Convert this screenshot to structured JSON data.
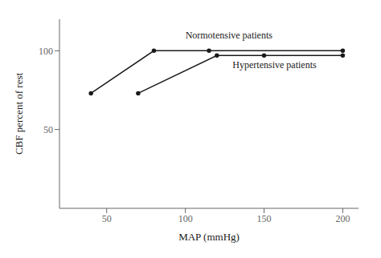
{
  "chart_data": {
    "type": "line",
    "xlabel": "MAP (mmHg)",
    "ylabel": "CBF percent of rest",
    "series": [
      {
        "color": "#1a1a1a",
        "marker": "point",
        "x": [
          40,
          80,
          115,
          200
        ],
        "values": [
          73,
          100,
          100,
          100
        ]
      },
      {
        "color": "#1a1a1a",
        "marker": "point",
        "x": [
          70,
          120,
          150,
          200
        ],
        "values": [
          73,
          97,
          97,
          97
        ]
      }
    ],
    "annotations": [
      {
        "text": "Normotensive patients",
        "x": 100,
        "y": 108
      },
      {
        "text": "Hypertensive patients",
        "x": 130,
        "y": 89
      }
    ],
    "xlim": [
      20,
      210
    ],
    "ylim": [
      0,
      120
    ],
    "xticks": [
      50,
      100,
      150,
      200
    ],
    "yticks": [
      50,
      100
    ],
    "grid": false
  }
}
